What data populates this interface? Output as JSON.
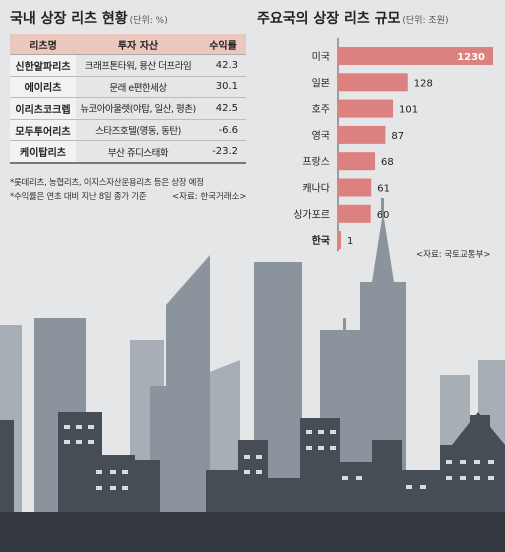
{
  "left": {
    "title": "국내 상장 리츠 현황",
    "unit": "(단위: %)",
    "headers": [
      "리츠명",
      "투자 자산",
      "수익률"
    ],
    "rows": [
      [
        "신한알파리츠",
        "크래프톤타워, 용산 더프라임",
        "42.3"
      ],
      [
        "에이리츠",
        "문래 e편한세상",
        "30.1"
      ],
      [
        "이리츠코크렙",
        "뉴코아아울렛(야탑, 일산, 평촌)",
        "42.5"
      ],
      [
        "모두투어리츠",
        "스타즈호텔(명동, 동탄)",
        "-6.6"
      ],
      [
        "케이탑리츠",
        "부산 쥬디스태화",
        "-23.2"
      ]
    ],
    "note1": "*롯데리츠, 농협리츠, 이지스자산운용리츠 등은 상장 예정",
    "note2": "*수익률은 연초 대비 지난 8일 종가 기준",
    "source": "<자료: 한국거래소>"
  },
  "chart_data": {
    "type": "bar",
    "orientation": "horizontal",
    "title": "주요국의 상장 리츠 규모",
    "unit": "(단위: 조원)",
    "categories": [
      "미국",
      "일본",
      "호주",
      "영국",
      "프랑스",
      "캐나다",
      "싱가포르",
      "한국"
    ],
    "values": [
      1230,
      128,
      101,
      87,
      68,
      61,
      60,
      1
    ],
    "value_labels": [
      "1230",
      "128",
      "101",
      "87",
      "68",
      "61",
      "60",
      "1"
    ],
    "source": "<자료: 국토교통부>",
    "colors": {
      "bar": "#dd8080",
      "highlight_category": "한국"
    }
  }
}
